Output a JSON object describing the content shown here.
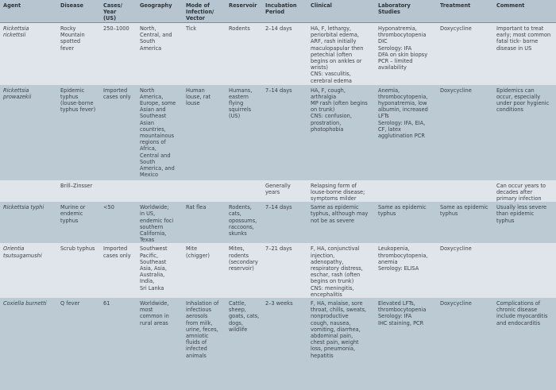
{
  "headers": [
    "Agent",
    "Disease",
    "Cases/\nYear\n(US)",
    "Geography",
    "Mode of\nInfection/\nVector",
    "Reservoir",
    "Incubation\nPeriod",
    "Clinical",
    "Laboratory\nStudies",
    "Treatment",
    "Comment"
  ],
  "rows": [
    [
      "Rickettsia\nrickettsii",
      "Rocky\nMountain\nspotted\nfever",
      "250–1000",
      "North,\nCentral, and\nSouth\nAmerica",
      "Tick",
      "Rodents",
      "2–14 days",
      "HA, F, lethargy,\nperiorbital edema,\nARF, rash initially\nmaculopapular then\npetechial (often\nbegins on ankles or\nwrists)\nCNS: vasculitis,\ncerebral edema",
      "Hyponatremia,\nthrombocytopenia\nDIC\nSerology: IFA\nDFA on skin biopsy\nPCR – limited\navailability",
      "Doxycycline",
      "Important to treat\nearly; most common\nfatal tick- borne\ndisease in US"
    ],
    [
      "Rickettsia\nprowazekii",
      "Epidemic\ntyphus\n(louse-borne\ntyphus fever)",
      "Imported\ncases only",
      "North\nAmerica,\nEurope, some\nAsian and\nSoutheast\nAsian\ncountries,\nmountainous\nregions of\nAfrica,\nCentral and\nSouth\nAmerica, and\nMexico",
      "Human\nlouse, rat\nlouse",
      "Humans,\neastern\nflying\nsquirrels\n(US)",
      "7–14 days",
      "HA, F, cough,\narthralgia\nMP rash (often begins\non trunk)\nCNS: confusion,\nprostration,\nphotophobia",
      "Anemia,\nthrombocytopenia,\nhyponatremia, low\nalbumin, increased\nLFTs\nSerology: IFA, EIA,\nCF, latex\nagglutination PCR",
      "Doxycycline",
      "Epidemics can\noccur, especially\nunder poor hygienic\nconditions"
    ],
    [
      "",
      "Brill–Zinsser",
      "",
      "",
      "",
      "",
      "Generally\nyears",
      "Relapsing form of\nlouse-borne disease;\nsymptoms milder",
      "",
      "",
      "Can occur years to\ndecades after\nprimary infection"
    ],
    [
      "Rickettsia typhi",
      "Murine or\nendemic\ntyphus",
      "<50",
      "Worldwide;\nin US,\nendemic foci\nsouthern\nCalifornia,\nTexas",
      "Rat flea",
      "Rodents,\ncats,\nopossums,\nraccoons,\nskunks",
      "7–14 days",
      "Same as epidemic\ntyphus, although may\nnot be as severe",
      "Same as epidemic\ntyphus",
      "Same as epidemic\ntyphus",
      "Usually less severe\nthan epidemic\ntyphus"
    ],
    [
      "Orientia\ntsutsugamushi",
      "Scrub typhus",
      "Imported\ncases only",
      "Southwest\nPacific,\nSoutheast\nAsia, Asia,\nAustralia,\nIndia,\nSri Lanka",
      "Mite\n(chigger)",
      "Mites,\nrodents\n(secondary\nreservoir)",
      "7–21 days",
      "F, HA, conjunctival\ninjection,\nadenopathy,\nrespiratory distress,\neschar, rash (often\nbegins on trunk)\nCNS: meningitis,\nencephalitis",
      "Leukopenia,\nthrombocytopenia,\nanemia\nSerology: ELISA",
      "Doxycycline",
      ""
    ],
    [
      "Coxiella burnetti",
      "Q fever",
      "61",
      "Worldwide,\nmost\ncommon in\nrural areas",
      "Inhalation of\ninfectious\naerosols\nfrom milk,\nurine, feces,\namniotic\nfluids of\ninfected\nanimals",
      "Cattle,\nsheep,\ngoats, cats,\ndogs,\nwildlife",
      "2–3 weeks",
      "F, HA, malaise, sore\nthroat, chills, sweats,\nnonproductive\ncough, nausea,\nvomiting, diarrhea,\nabdominal pain,\nchest pain, weight\nloss, pneumonia,\nhepatitis",
      "Elevated LFTs,\nthrombocytopenia\nSerology: IFA\nIHC staining, PCR",
      "Doxycycline",
      "Complications of\nchronic disease\ninclude myocarditis\nand endocarditis"
    ]
  ]
}
